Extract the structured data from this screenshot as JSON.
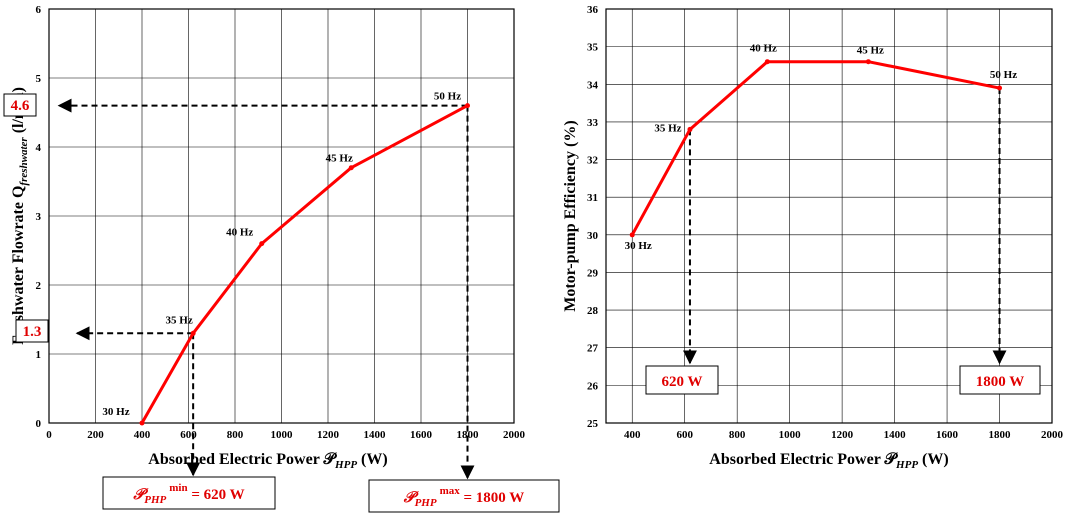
{
  "chart_data": [
    {
      "type": "line",
      "x": [
        400,
        620,
        915,
        1300,
        1800
      ],
      "values": [
        0,
        1.3,
        2.6,
        3.7,
        4.6
      ],
      "point_labels": [
        "30 Hz",
        "35 Hz",
        "40 Hz",
        "45 Hz",
        "50 Hz"
      ],
      "xlabel": "Absorbed Electric Power 𝒫",
      "xlabel_sub": "HPP",
      "xlabel_unit": "(W)",
      "ylabel": "Freshwater  Flowrate Q",
      "ylabel_sub": "freshwater",
      "ylabel_unit": "(l/min)",
      "xlim": [
        0,
        2000
      ],
      "ylim": [
        0,
        6
      ],
      "xticks": [
        "0",
        "200",
        "400",
        "600",
        "800",
        "1000",
        "1200",
        "1400",
        "1600",
        "1800",
        "2000"
      ],
      "yticks": [
        "0",
        "1",
        "2",
        "3",
        "4",
        "5",
        "6"
      ],
      "grid": true,
      "line_color": "#ff0000",
      "callouts": {
        "y_high": "4.6",
        "y_low": "1.3",
        "min_box": {
          "symbol": "𝒫",
          "sub": "PHP",
          "sup": "min",
          "rest": " = 620 W"
        },
        "max_box": {
          "symbol": "𝒫",
          "sub": "PHP",
          "sup": "max",
          "rest": " = 1800 W"
        }
      }
    },
    {
      "type": "line",
      "x": [
        400,
        620,
        915,
        1300,
        1800
      ],
      "values": [
        30,
        32.8,
        34.6,
        34.6,
        33.9
      ],
      "point_labels": [
        "30 Hz",
        "35 Hz",
        "40 Hz",
        "45 Hz",
        "50 Hz"
      ],
      "xlabel": "Absorbed Electric Power 𝒫",
      "xlabel_sub": "HPP",
      "xlabel_unit": "(W)",
      "ylabel": "Motor-pump Efficiency (%)",
      "xlim": [
        300,
        2000
      ],
      "ylim": [
        25,
        36
      ],
      "xticks": [
        "400",
        "600",
        "800",
        "1000",
        "1200",
        "1400",
        "1600",
        "1800",
        "2000"
      ],
      "yticks": [
        "25",
        "26",
        "27",
        "28",
        "29",
        "30",
        "31",
        "32",
        "33",
        "34",
        "35",
        "36"
      ],
      "grid": true,
      "line_color": "#ff0000",
      "callouts": {
        "box_a": "620 W",
        "box_b": "1800 W"
      }
    }
  ]
}
